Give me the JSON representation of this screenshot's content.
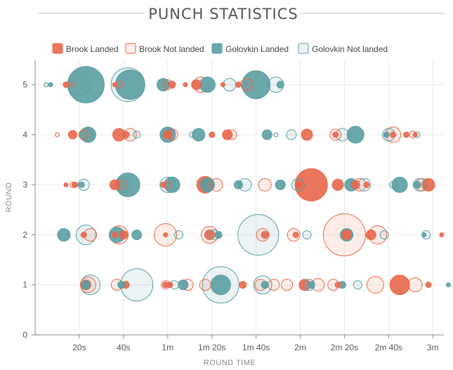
{
  "chart_data": {
    "type": "scatter",
    "title": "PUNCH STATISTICS",
    "xlabel": "ROUND TIME",
    "ylabel": "ROUND",
    "x_unit": "seconds",
    "xlim": [
      0,
      185
    ],
    "ylim": [
      0,
      5.5
    ],
    "x_ticks": [
      {
        "value": 20,
        "label": "20s"
      },
      {
        "value": 40,
        "label": "40s"
      },
      {
        "value": 60,
        "label": "1m"
      },
      {
        "value": 80,
        "label": "1m 20s"
      },
      {
        "value": 100,
        "label": "1m 40s"
      },
      {
        "value": 120,
        "label": "2m"
      },
      {
        "value": 140,
        "label": "2m 20s"
      },
      {
        "value": 160,
        "label": "2m 40s"
      },
      {
        "value": 180,
        "label": "3m"
      }
    ],
    "y_ticks": [
      0,
      1,
      2,
      3,
      4,
      5
    ],
    "grid": true,
    "legend_position": "top",
    "series": [
      {
        "name": "Brook Landed",
        "style": "filled",
        "color": "#e8674c",
        "points": [
          {
            "round": 5,
            "time": 14,
            "size": 4
          },
          {
            "round": 5,
            "time": 36,
            "size": 3
          },
          {
            "round": 5,
            "time": 62,
            "size": 5
          },
          {
            "round": 5,
            "time": 68,
            "size": 3
          },
          {
            "round": 5,
            "time": 73,
            "size": 7
          },
          {
            "round": 5,
            "time": 85,
            "size": 3
          },
          {
            "round": 5,
            "time": 92,
            "size": 4
          },
          {
            "round": 4,
            "time": 17,
            "size": 6
          },
          {
            "round": 4,
            "time": 38,
            "size": 9
          },
          {
            "round": 4,
            "time": 41,
            "size": 5
          },
          {
            "round": 4,
            "time": 60,
            "size": 6
          },
          {
            "round": 4,
            "time": 80,
            "size": 4
          },
          {
            "round": 4,
            "time": 87,
            "size": 7
          },
          {
            "round": 4,
            "time": 123,
            "size": 8
          },
          {
            "round": 4,
            "time": 136,
            "size": 4
          },
          {
            "round": 4,
            "time": 162,
            "size": 4
          },
          {
            "round": 4,
            "time": 168,
            "size": 4
          },
          {
            "round": 4,
            "time": 172,
            "size": 3
          },
          {
            "round": 3,
            "time": 14,
            "size": 3
          },
          {
            "round": 3,
            "time": 18,
            "size": 4
          },
          {
            "round": 3,
            "time": 36,
            "size": 7
          },
          {
            "round": 3,
            "time": 58,
            "size": 4
          },
          {
            "round": 3,
            "time": 77,
            "size": 12
          },
          {
            "round": 3,
            "time": 119,
            "size": 4
          },
          {
            "round": 3,
            "time": 125,
            "size": 23
          },
          {
            "round": 3,
            "time": 137,
            "size": 8
          },
          {
            "round": 3,
            "time": 145,
            "size": 6
          },
          {
            "round": 3,
            "time": 150,
            "size": 4
          },
          {
            "round": 3,
            "time": 178,
            "size": 9
          },
          {
            "round": 2,
            "time": 22,
            "size": 4
          },
          {
            "round": 2,
            "time": 36,
            "size": 4
          },
          {
            "round": 2,
            "time": 40,
            "size": 6
          },
          {
            "round": 2,
            "time": 59,
            "size": 3
          },
          {
            "round": 2,
            "time": 79,
            "size": 7
          },
          {
            "round": 2,
            "time": 104,
            "size": 5
          },
          {
            "round": 2,
            "time": 118,
            "size": 4
          },
          {
            "round": 2,
            "time": 141,
            "size": 7
          },
          {
            "round": 2,
            "time": 152,
            "size": 7
          },
          {
            "round": 2,
            "time": 184,
            "size": 3
          },
          {
            "round": 1,
            "time": 23,
            "size": 7
          },
          {
            "round": 1,
            "time": 41,
            "size": 5
          },
          {
            "round": 1,
            "time": 59,
            "size": 4
          },
          {
            "round": 1,
            "time": 61,
            "size": 4
          },
          {
            "round": 1,
            "time": 94,
            "size": 5
          },
          {
            "round": 1,
            "time": 122,
            "size": 8
          },
          {
            "round": 1,
            "time": 137,
            "size": 4
          },
          {
            "round": 1,
            "time": 165,
            "size": 14
          },
          {
            "round": 1,
            "time": 178,
            "size": 4
          }
        ]
      },
      {
        "name": "Brook Not landed",
        "style": "outline",
        "color": "#e8674c",
        "points": [
          {
            "round": 5,
            "time": 17,
            "size": 3
          },
          {
            "round": 5,
            "time": 38,
            "size": 5
          },
          {
            "round": 5,
            "time": 60,
            "size": 7
          },
          {
            "round": 5,
            "time": 75,
            "size": 11
          },
          {
            "round": 5,
            "time": 96,
            "size": 9
          },
          {
            "round": 4,
            "time": 10,
            "size": 3
          },
          {
            "round": 4,
            "time": 22,
            "size": 7
          },
          {
            "round": 4,
            "time": 43,
            "size": 9
          },
          {
            "round": 4,
            "time": 62,
            "size": 8
          },
          {
            "round": 4,
            "time": 89,
            "size": 7
          },
          {
            "round": 4,
            "time": 136,
            "size": 8
          },
          {
            "round": 4,
            "time": 162,
            "size": 11
          },
          {
            "round": 4,
            "time": 171,
            "size": 5
          },
          {
            "round": 3,
            "time": 17,
            "size": 4
          },
          {
            "round": 3,
            "time": 39,
            "size": 7
          },
          {
            "round": 3,
            "time": 60,
            "size": 6
          },
          {
            "round": 3,
            "time": 82,
            "size": 9
          },
          {
            "round": 3,
            "time": 104,
            "size": 9
          },
          {
            "round": 3,
            "time": 121,
            "size": 4
          },
          {
            "round": 3,
            "time": 147,
            "size": 9
          },
          {
            "round": 3,
            "time": 175,
            "size": 9
          },
          {
            "round": 2,
            "time": 25,
            "size": 9
          },
          {
            "round": 2,
            "time": 38,
            "size": 13
          },
          {
            "round": 2,
            "time": 59,
            "size": 16
          },
          {
            "round": 2,
            "time": 79,
            "size": 12
          },
          {
            "round": 2,
            "time": 103,
            "size": 9
          },
          {
            "round": 2,
            "time": 117,
            "size": 9
          },
          {
            "round": 2,
            "time": 140,
            "size": 30
          },
          {
            "round": 2,
            "time": 155,
            "size": 13
          },
          {
            "round": 1,
            "time": 24,
            "size": 11
          },
          {
            "round": 1,
            "time": 37,
            "size": 8
          },
          {
            "round": 1,
            "time": 59,
            "size": 6
          },
          {
            "round": 1,
            "time": 69,
            "size": 8
          },
          {
            "round": 1,
            "time": 77,
            "size": 8
          },
          {
            "round": 1,
            "time": 102,
            "size": 8
          },
          {
            "round": 1,
            "time": 108,
            "size": 8
          },
          {
            "round": 1,
            "time": 114,
            "size": 8
          },
          {
            "round": 1,
            "time": 128,
            "size": 9
          },
          {
            "round": 1,
            "time": 135,
            "size": 8
          },
          {
            "round": 1,
            "time": 154,
            "size": 12
          },
          {
            "round": 1,
            "time": 172,
            "size": 10
          }
        ]
      },
      {
        "name": "Golovkin Landed",
        "style": "filled",
        "color": "#5a9ea2",
        "points": [
          {
            "round": 5,
            "time": 7,
            "size": 3
          },
          {
            "round": 5,
            "time": 23,
            "size": 26
          },
          {
            "round": 5,
            "time": 43,
            "size": 21
          },
          {
            "round": 5,
            "time": 58,
            "size": 9
          },
          {
            "round": 5,
            "time": 78,
            "size": 11
          },
          {
            "round": 5,
            "time": 100,
            "size": 20
          },
          {
            "round": 5,
            "time": 111,
            "size": 5
          },
          {
            "round": 4,
            "time": 24,
            "size": 11
          },
          {
            "round": 4,
            "time": 60,
            "size": 11
          },
          {
            "round": 4,
            "time": 74,
            "size": 9
          },
          {
            "round": 4,
            "time": 105,
            "size": 7
          },
          {
            "round": 4,
            "time": 145,
            "size": 12
          },
          {
            "round": 4,
            "time": 159,
            "size": 4
          },
          {
            "round": 3,
            "time": 21,
            "size": 4
          },
          {
            "round": 3,
            "time": 42,
            "size": 17
          },
          {
            "round": 3,
            "time": 62,
            "size": 11
          },
          {
            "round": 3,
            "time": 78,
            "size": 10
          },
          {
            "round": 3,
            "time": 92,
            "size": 6
          },
          {
            "round": 3,
            "time": 111,
            "size": 7
          },
          {
            "round": 3,
            "time": 143,
            "size": 9
          },
          {
            "round": 3,
            "time": 165,
            "size": 11
          },
          {
            "round": 3,
            "time": 173,
            "size": 5
          },
          {
            "round": 2,
            "time": 13,
            "size": 9
          },
          {
            "round": 2,
            "time": 37,
            "size": 11
          },
          {
            "round": 2,
            "time": 46,
            "size": 7
          },
          {
            "round": 2,
            "time": 83,
            "size": 5
          },
          {
            "round": 2,
            "time": 141,
            "size": 9
          },
          {
            "round": 2,
            "time": 176,
            "size": 3
          },
          {
            "round": 1,
            "time": 23,
            "size": 6
          },
          {
            "round": 1,
            "time": 39,
            "size": 5
          },
          {
            "round": 1,
            "time": 67,
            "size": 7
          },
          {
            "round": 1,
            "time": 84,
            "size": 14
          },
          {
            "round": 1,
            "time": 104,
            "size": 5
          },
          {
            "round": 1,
            "time": 125,
            "size": 5
          },
          {
            "round": 1,
            "time": 139,
            "size": 5
          },
          {
            "round": 1,
            "time": 187,
            "size": 3
          }
        ]
      },
      {
        "name": "Golovkin Not landed",
        "style": "outline",
        "color": "#5a9ea2",
        "points": [
          {
            "round": 5,
            "time": 5,
            "size": 3
          },
          {
            "round": 5,
            "time": 20,
            "size": 16
          },
          {
            "round": 5,
            "time": 42,
            "size": 24
          },
          {
            "round": 5,
            "time": 88,
            "size": 9
          },
          {
            "round": 5,
            "time": 109,
            "size": 11
          },
          {
            "round": 4,
            "time": 23,
            "size": 9
          },
          {
            "round": 4,
            "time": 46,
            "size": 5
          },
          {
            "round": 4,
            "time": 71,
            "size": 4
          },
          {
            "round": 4,
            "time": 109,
            "size": 3
          },
          {
            "round": 4,
            "time": 116,
            "size": 7
          },
          {
            "round": 4,
            "time": 139,
            "size": 9
          },
          {
            "round": 4,
            "time": 160,
            "size": 9
          },
          {
            "round": 4,
            "time": 173,
            "size": 4
          },
          {
            "round": 3,
            "time": 22,
            "size": 8
          },
          {
            "round": 3,
            "time": 40,
            "size": 11
          },
          {
            "round": 3,
            "time": 60,
            "size": 11
          },
          {
            "round": 3,
            "time": 95,
            "size": 9
          },
          {
            "round": 3,
            "time": 119,
            "size": 9
          },
          {
            "round": 3,
            "time": 149,
            "size": 9
          },
          {
            "round": 3,
            "time": 162,
            "size": 5
          },
          {
            "round": 3,
            "time": 174,
            "size": 9
          },
          {
            "round": 2,
            "time": 23,
            "size": 14
          },
          {
            "round": 2,
            "time": 65,
            "size": 6
          },
          {
            "round": 2,
            "time": 81,
            "size": 7
          },
          {
            "round": 2,
            "time": 101,
            "size": 29
          },
          {
            "round": 2,
            "time": 123,
            "size": 6
          },
          {
            "round": 2,
            "time": 158,
            "size": 6
          },
          {
            "round": 2,
            "time": 177,
            "size": 6
          },
          {
            "round": 1,
            "time": 25,
            "size": 14
          },
          {
            "round": 1,
            "time": 46,
            "size": 23
          },
          {
            "round": 1,
            "time": 63,
            "size": 6
          },
          {
            "round": 1,
            "time": 84,
            "size": 26
          },
          {
            "round": 1,
            "time": 103,
            "size": 13
          },
          {
            "round": 1,
            "time": 124,
            "size": 8
          },
          {
            "round": 1,
            "time": 146,
            "size": 6
          }
        ]
      }
    ]
  }
}
